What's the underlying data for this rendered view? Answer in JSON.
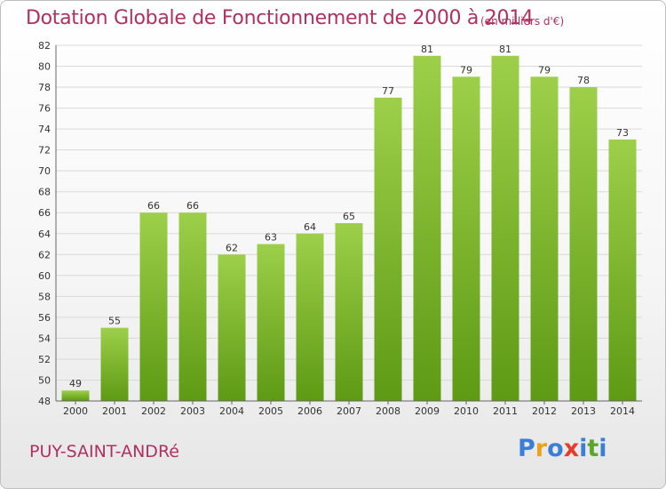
{
  "header": {
    "title": "Dotation Globale de Fonctionnement de 2000 à 2014",
    "subtitle": "(en milliers d'€)"
  },
  "footer": {
    "commune": "PUY-SAINT-ANDRé",
    "logo": [
      "P",
      "r",
      "o",
      "x",
      "i",
      "t",
      "i"
    ]
  },
  "colors": {
    "title": "#b03060",
    "bar_top": "#9dcf4a",
    "bar_bottom": "#5e9a14",
    "grid": "#d9d9d9",
    "logo": [
      "#3a7fd5",
      "#e9a318",
      "#3a7fd5",
      "#e63c2c",
      "#3a7fd5",
      "#5aa52e",
      "#3a7fd5"
    ]
  },
  "chart_data": {
    "type": "bar",
    "categories": [
      "2000",
      "2001",
      "2002",
      "2003",
      "2004",
      "2005",
      "2006",
      "2007",
      "2008",
      "2009",
      "2010",
      "2011",
      "2012",
      "2013",
      "2014"
    ],
    "values": [
      49,
      55,
      66,
      66,
      62,
      63,
      64,
      65,
      77,
      81,
      79,
      81,
      79,
      78,
      73
    ],
    "ylim": [
      48,
      82
    ],
    "yticks": [
      48,
      50,
      52,
      54,
      56,
      58,
      60,
      62,
      64,
      66,
      68,
      70,
      72,
      74,
      76,
      78,
      80,
      82
    ],
    "grid": true
  }
}
